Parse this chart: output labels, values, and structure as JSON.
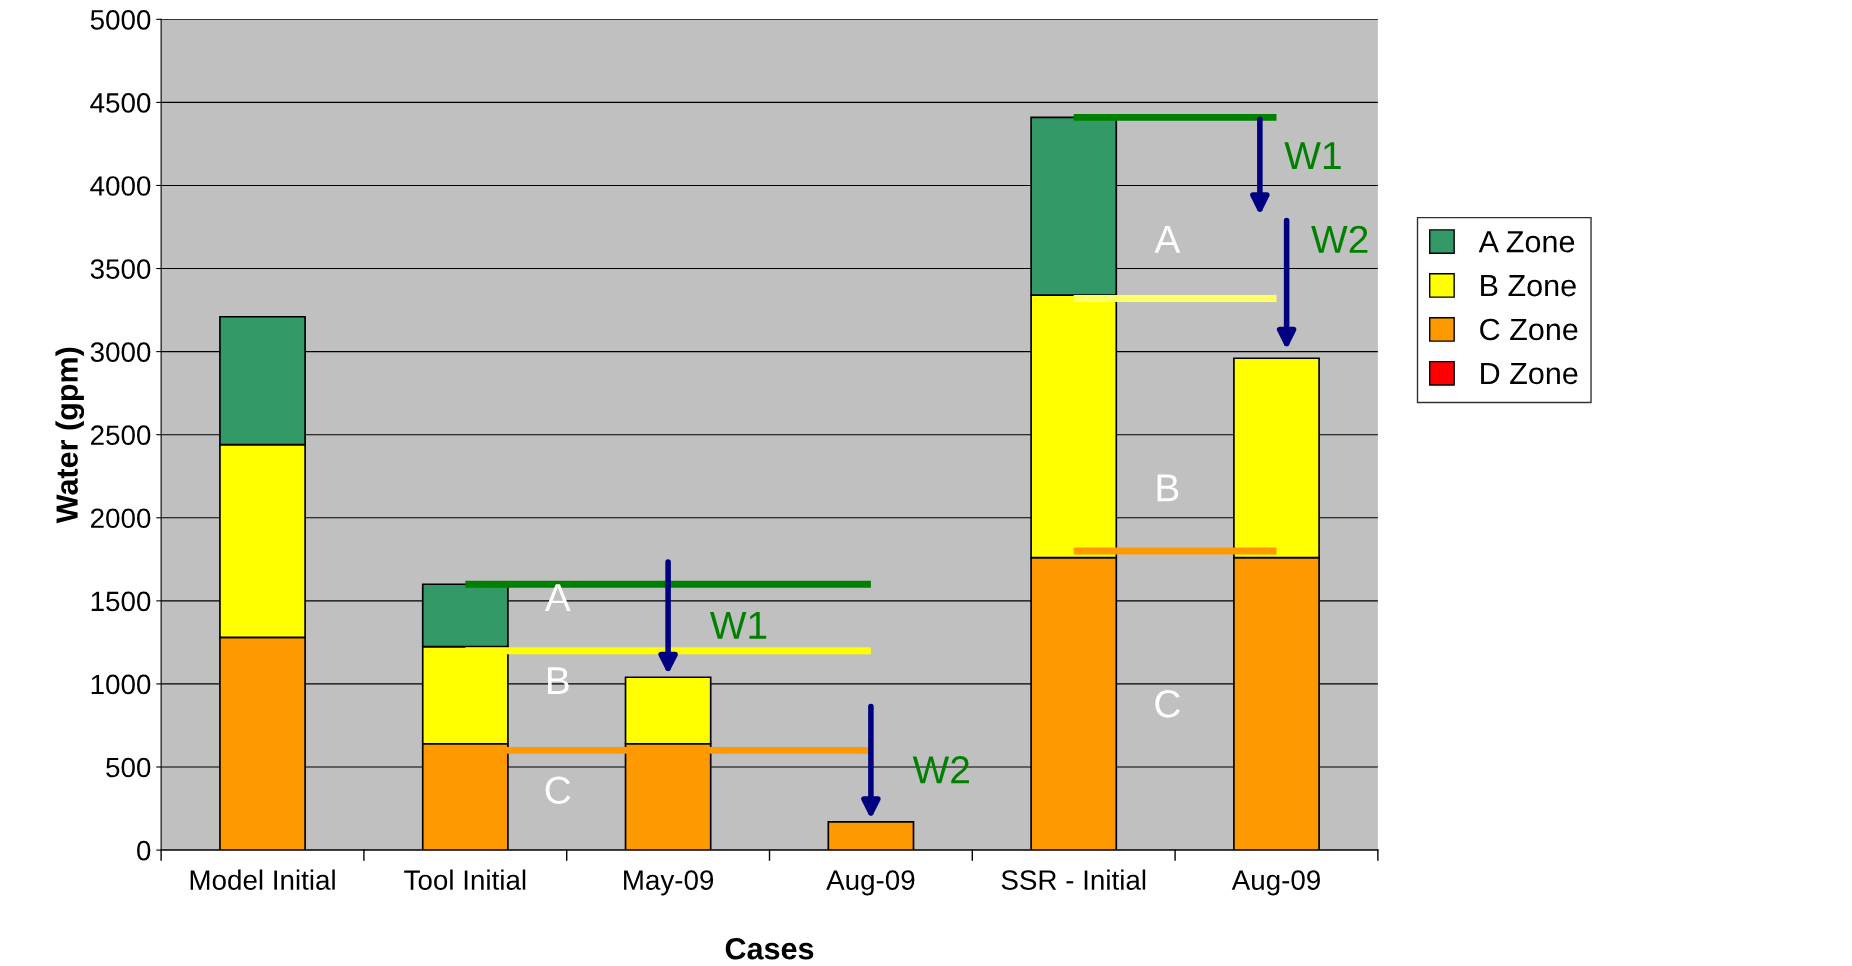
{
  "chart_data": {
    "type": "bar",
    "stacked": true,
    "xlabel": "Cases",
    "ylabel": "Water (gpm)",
    "categories": [
      "Model Initial",
      "Tool Initial",
      "May-09",
      "Aug-09",
      "SSR - Initial",
      "Aug-09"
    ],
    "series": [
      {
        "name": "D Zone",
        "color": "#ff0000",
        "values": [
          null,
          null,
          null,
          null,
          null,
          null
        ]
      },
      {
        "name": "C Zone",
        "color": "#ff9900",
        "values": [
          1280,
          640,
          640,
          170,
          1760,
          1760
        ]
      },
      {
        "name": "B Zone",
        "color": "#ffff00",
        "values": [
          1160,
          585,
          400,
          null,
          1580,
          1200
        ]
      },
      {
        "name": "A Zone",
        "color": "#339966",
        "values": [
          770,
          375,
          null,
          null,
          1070,
          null
        ]
      },
      {
        "type": "line",
        "color": "#008000",
        "values": [
          null,
          1600,
          1600,
          1600,
          null,
          null
        ]
      },
      {
        "type": "line",
        "color": "#ffff00",
        "values": [
          null,
          1200,
          1200,
          1200,
          null,
          null
        ]
      },
      {
        "type": "line",
        "color": "#ff9900",
        "values": [
          null,
          600,
          600,
          600,
          null,
          null
        ]
      },
      {
        "type": "line",
        "color": "#008000",
        "values": [
          null,
          null,
          null,
          null,
          4410,
          4410
        ]
      },
      {
        "type": "line",
        "color": "#ffff66",
        "values": [
          null,
          null,
          null,
          null,
          3320,
          3320
        ]
      },
      {
        "type": "line",
        "color": "#ff9900",
        "values": [
          null,
          null,
          null,
          null,
          1800,
          1800
        ]
      }
    ],
    "ylim": [
      0,
      5000
    ],
    "yticks": [
      0,
      500,
      1000,
      1500,
      2000,
      2500,
      3000,
      3500,
      4000,
      4500,
      5000
    ],
    "grid": "y",
    "legend": "right",
    "annotations": [
      {
        "text": "W1",
        "x": "May-09",
        "y": 1040
      },
      {
        "text": "W2",
        "x": "Aug-09",
        "y": 170
      },
      "W1",
      "W2",
      "A",
      "B",
      "C",
      "A",
      "B",
      "C"
    ]
  }
}
